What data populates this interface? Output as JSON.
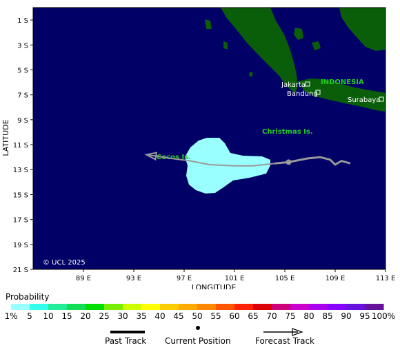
{
  "map": {
    "ocean_color": "#000066",
    "land_color": "#0a5e0a",
    "probability_color": "#99ffff",
    "lat_labels": [
      "1 S",
      "3 S",
      "5 S",
      "7 S",
      "9 S",
      "11 S",
      "13 S",
      "15 S",
      "17 S",
      "19 S",
      "21 S"
    ],
    "lon_labels": [
      "89 E",
      "93 E",
      "97 E",
      "101 E",
      "105 E",
      "109 E",
      "113 E"
    ],
    "xlabel": "LONGITUDE",
    "ylabel": "LATITUDE",
    "places": {
      "indonesia": "INDONESIA",
      "jakarta": "Jakarta",
      "bandung": "Bandung",
      "surabaya": "Surabaya",
      "christmas": "Christmas Is.",
      "cocos": "Cocos Is."
    },
    "copyright": "© UCL 2025"
  },
  "track": {
    "past": [
      [
        110.2,
        -12.5
      ],
      [
        109.5,
        -12.3
      ],
      [
        109.0,
        -12.6
      ],
      [
        108.6,
        -12.2
      ],
      [
        107.8,
        -12.0
      ],
      [
        106.8,
        -12.1
      ],
      [
        105.3,
        -12.4
      ],
      [
        104.2,
        -12.5
      ]
    ],
    "current_position": [
      105.3,
      -12.4
    ],
    "forecast": [
      [
        104.2,
        -12.5
      ],
      [
        102.5,
        -12.7
      ],
      [
        101.0,
        -12.7
      ],
      [
        99.0,
        -12.6
      ],
      [
        97.5,
        -12.3
      ],
      [
        96.0,
        -12.1
      ],
      [
        94.0,
        -11.8
      ]
    ]
  },
  "legend": {
    "title": "Probability",
    "colors": [
      "#99ffff",
      "#33ffee",
      "#22ee99",
      "#11dd55",
      "#00dd00",
      "#77ee00",
      "#ccff00",
      "#ffff00",
      "#ffcc00",
      "#ffaa00",
      "#ff8800",
      "#ff5500",
      "#ff2200",
      "#dd0000",
      "#cc0077",
      "#cc00cc",
      "#aa00ee",
      "#8800ff",
      "#6611dd",
      "#661199",
      "#660066"
    ],
    "labels": [
      "1%",
      "5",
      "10",
      "15",
      "20",
      "25",
      "30",
      "35",
      "40",
      "45",
      "50",
      "55",
      "60",
      "65",
      "70",
      "75",
      "80",
      "85",
      "90",
      "95",
      "100%"
    ]
  },
  "key": {
    "past_track": "Past Track",
    "current_position": "Current Position",
    "forecast_track": "Forecast Track"
  }
}
